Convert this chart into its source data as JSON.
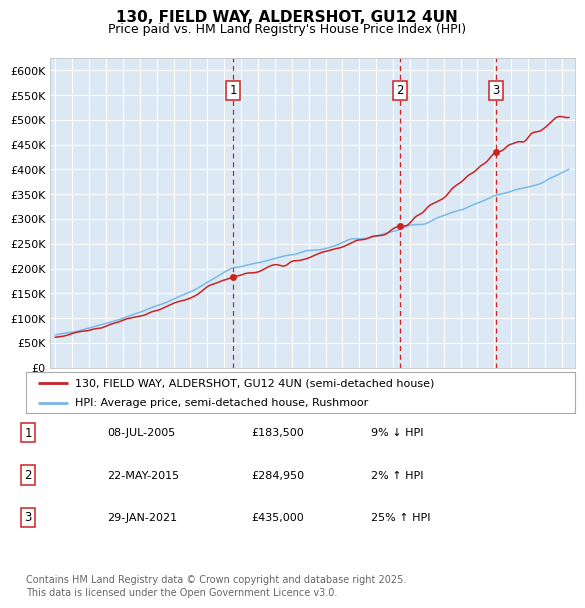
{
  "title": "130, FIELD WAY, ALDERSHOT, GU12 4UN",
  "subtitle": "Price paid vs. HM Land Registry's House Price Index (HPI)",
  "ylim": [
    0,
    625000
  ],
  "yticks": [
    0,
    50000,
    100000,
    150000,
    200000,
    250000,
    300000,
    350000,
    400000,
    450000,
    500000,
    550000,
    600000
  ],
  "ytick_labels": [
    "£0",
    "£50K",
    "£100K",
    "£150K",
    "£200K",
    "£250K",
    "£300K",
    "£350K",
    "£400K",
    "£450K",
    "£500K",
    "£550K",
    "£600K"
  ],
  "plot_bg_color": "#dce9f5",
  "grid_color": "#ffffff",
  "hpi_color": "#7ab8e8",
  "price_color": "#cc2222",
  "vline_color": "#cc2222",
  "transaction_dates": [
    2005.52,
    2015.39,
    2021.08
  ],
  "transaction_prices": [
    183500,
    284950,
    435000
  ],
  "transaction_labels": [
    "1",
    "2",
    "3"
  ],
  "legend_label_price": "130, FIELD WAY, ALDERSHOT, GU12 4UN (semi-detached house)",
  "legend_label_hpi": "HPI: Average price, semi-detached house, Rushmoor",
  "table_entries": [
    {
      "num": "1",
      "date": "08-JUL-2005",
      "price": "£183,500",
      "change": "9% ↓ HPI"
    },
    {
      "num": "2",
      "date": "22-MAY-2015",
      "price": "£284,950",
      "change": "2% ↑ HPI"
    },
    {
      "num": "3",
      "date": "29-JAN-2021",
      "price": "£435,000",
      "change": "25% ↑ HPI"
    }
  ],
  "footnote": "Contains HM Land Registry data © Crown copyright and database right 2025.\nThis data is licensed under the Open Government Licence v3.0.",
  "title_fontsize": 11,
  "subtitle_fontsize": 9,
  "tick_fontsize": 8,
  "legend_fontsize": 8,
  "table_fontsize": 8,
  "footnote_fontsize": 7
}
